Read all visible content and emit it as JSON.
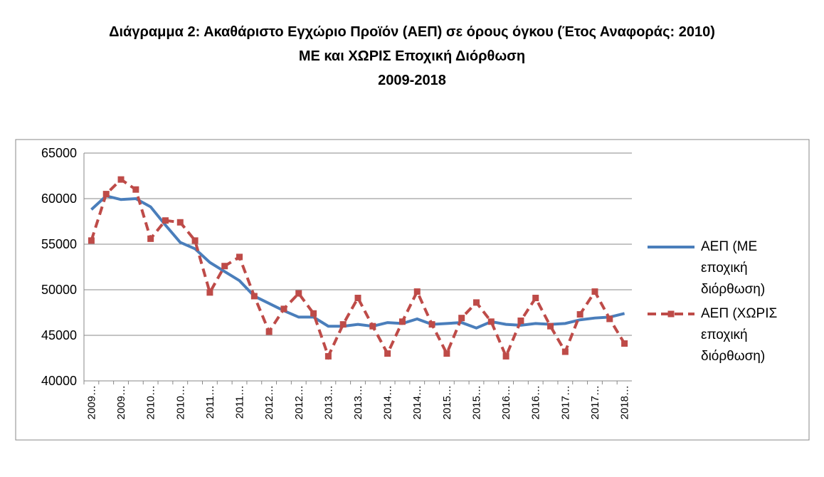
{
  "chart_data": {
    "type": "line",
    "title_lines": [
      "Διάγραμμα 2: Ακαθάριστο Εγχώριο Προϊόν (ΑΕΠ) σε όρους όγκου (Έτος Αναφοράς: 2010)",
      "ΜΕ και ΧΩΡΙΣ Εποχική Διόρθωση",
      "2009-2018"
    ],
    "categories": [
      "2009…",
      null,
      "2009…",
      null,
      "2010…",
      null,
      "2010…",
      null,
      "2011…",
      null,
      "2011…",
      null,
      "2012…",
      null,
      "2012…",
      null,
      "2013…",
      null,
      "2013…",
      null,
      "2014…",
      null,
      "2014…",
      null,
      "2015…",
      null,
      "2015…",
      null,
      "2016…",
      null,
      "2016…",
      null,
      "2017…",
      null,
      "2017…",
      null,
      "2018…"
    ],
    "series": [
      {
        "name": "ΑΕΠ (ΜΕ εποχική διόρθωση)",
        "color": "#4a7ebb",
        "dashed": false,
        "marker": false,
        "values": [
          58800,
          60300,
          59900,
          60000,
          59100,
          57100,
          55200,
          54500,
          53000,
          52000,
          51000,
          49300,
          48500,
          47700,
          47000,
          47000,
          46000,
          46000,
          46200,
          46000,
          46400,
          46300,
          46800,
          46200,
          46300,
          46400,
          45800,
          46500,
          46200,
          46100,
          46300,
          46200,
          46300,
          46700,
          46900,
          47000,
          47400
        ]
      },
      {
        "name": "ΑΕΠ (ΧΩΡΙΣ εποχική διόρθωση)",
        "color": "#be4b48",
        "dashed": true,
        "marker": true,
        "values": [
          55400,
          60500,
          62100,
          61000,
          55600,
          57600,
          57400,
          55400,
          49700,
          52600,
          53600,
          49300,
          45400,
          47900,
          49600,
          47400,
          42700,
          46200,
          49100,
          46000,
          43000,
          46500,
          49800,
          46200,
          43000,
          46900,
          48600,
          46500,
          42700,
          46600,
          49100,
          46000,
          43200,
          47300,
          49800,
          46800,
          44100
        ]
      }
    ],
    "ylim": [
      40000,
      65000
    ],
    "yticks": [
      40000,
      45000,
      50000,
      55000,
      60000,
      65000
    ],
    "grid": true,
    "legend": "right"
  }
}
